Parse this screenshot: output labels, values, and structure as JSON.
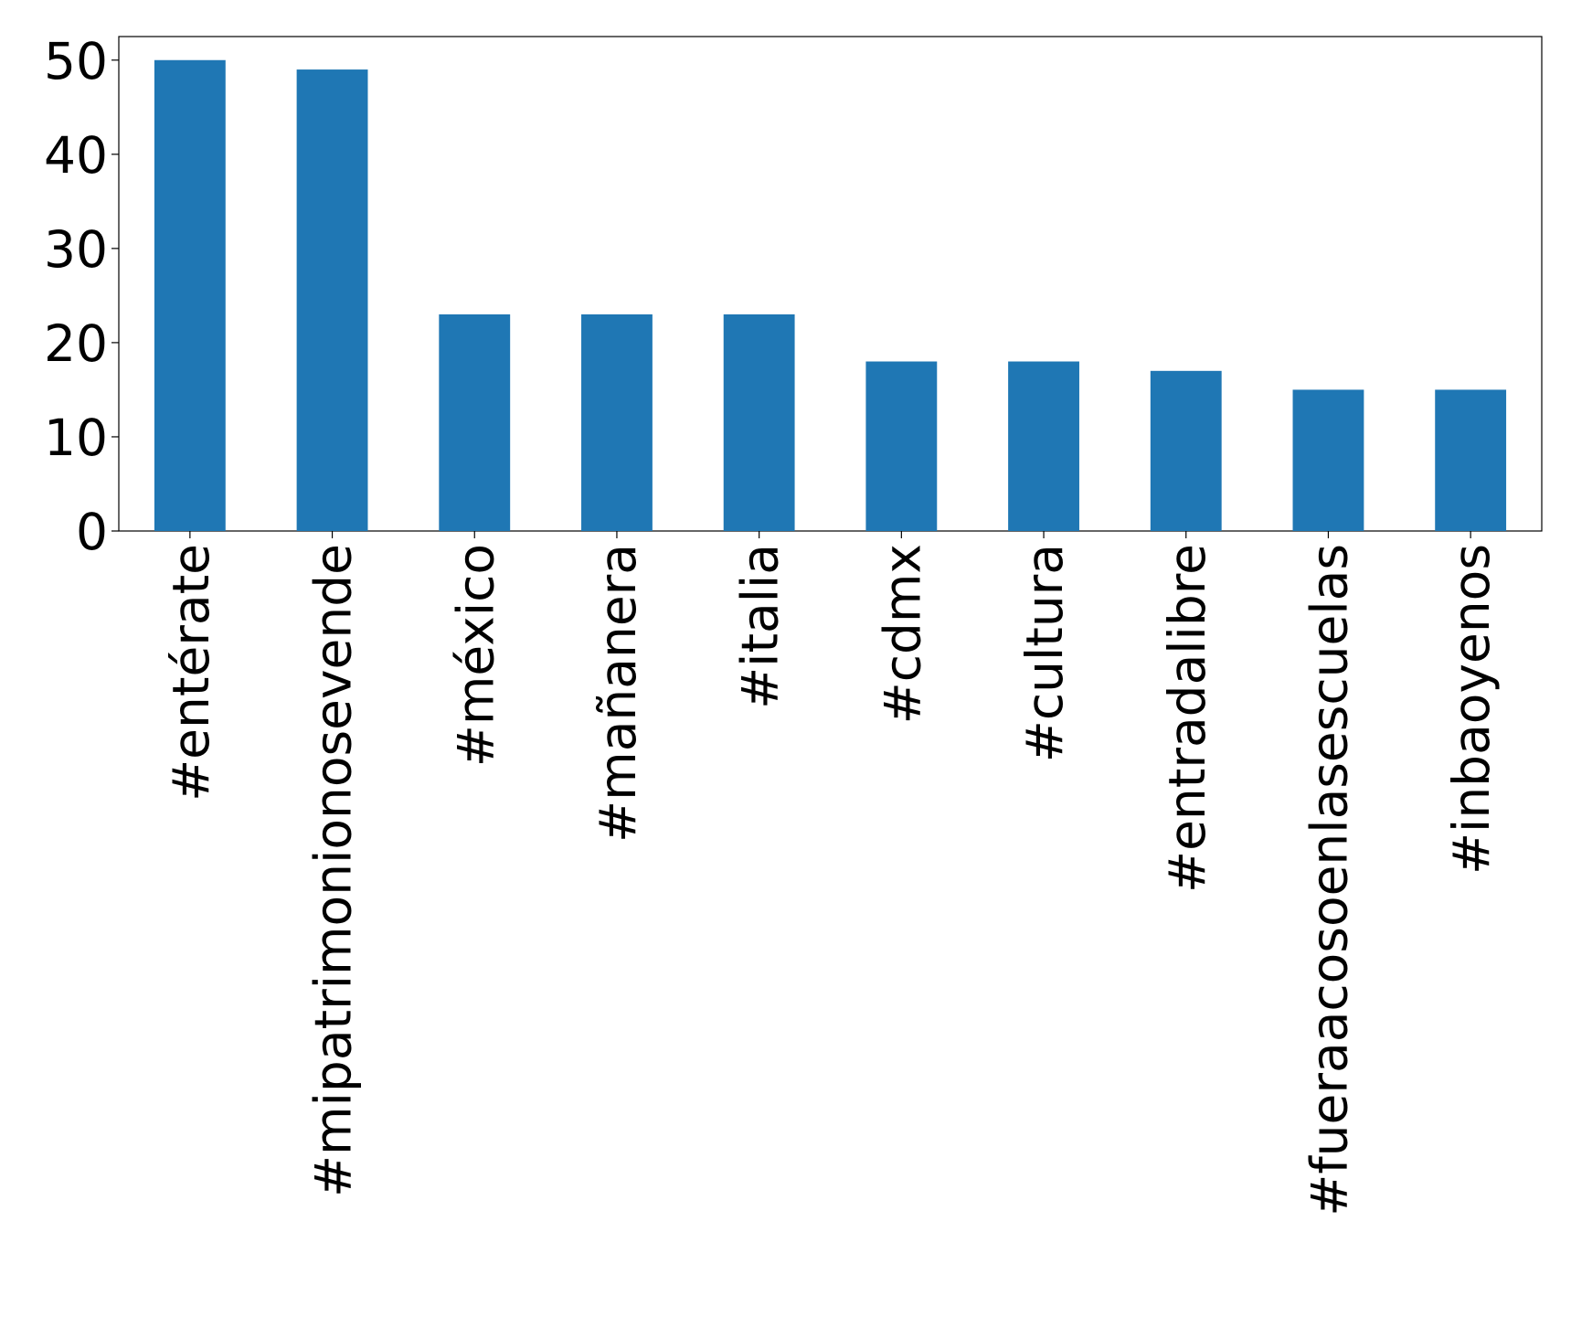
{
  "chart_data": {
    "type": "bar",
    "categories": [
      "#entérate",
      "#mipatrimonionosevende",
      "#méxico",
      "#mañanera",
      "#italia",
      "#cdmx",
      "#cultura",
      "#entradalibre",
      "#fueraacosoenlasescuelas",
      "#inbaoyenos"
    ],
    "values": [
      50,
      49,
      23,
      23,
      23,
      18,
      18,
      17,
      15,
      15
    ],
    "color": "#1f77b4",
    "ylim": [
      0,
      52.5
    ],
    "yticks": [
      0,
      10,
      20,
      30,
      40,
      50
    ],
    "grid": false
  }
}
